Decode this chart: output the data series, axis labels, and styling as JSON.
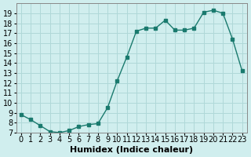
{
  "x": [
    0,
    1,
    2,
    3,
    4,
    5,
    6,
    7,
    8,
    9,
    10,
    11,
    12,
    13,
    14,
    15,
    16,
    17,
    18,
    19,
    20,
    21,
    22,
    23
  ],
  "y": [
    8.8,
    8.3,
    7.7,
    7.1,
    7.0,
    7.2,
    7.6,
    7.8,
    7.9,
    9.5,
    12.2,
    14.6,
    17.2,
    17.5,
    17.5,
    18.3,
    17.3,
    17.3,
    17.5,
    19.1,
    19.3,
    19.0,
    16.4,
    13.2
  ],
  "line_color": "#1a7a6e",
  "marker_color": "#1a7a6e",
  "bg_color": "#d0eeee",
  "grid_color": "#b0d8d8",
  "xlabel": "Humidex (Indice chaleur)",
  "ylim": [
    7,
    20
  ],
  "xlim": [
    -0.5,
    23.5
  ],
  "yticks": [
    7,
    8,
    9,
    10,
    11,
    12,
    13,
    14,
    15,
    16,
    17,
    18,
    19
  ],
  "xticks": [
    0,
    1,
    2,
    3,
    4,
    5,
    6,
    7,
    8,
    9,
    10,
    11,
    12,
    13,
    14,
    15,
    16,
    17,
    18,
    19,
    20,
    21,
    22,
    23
  ],
  "tick_fontsize": 7,
  "label_fontsize": 8
}
